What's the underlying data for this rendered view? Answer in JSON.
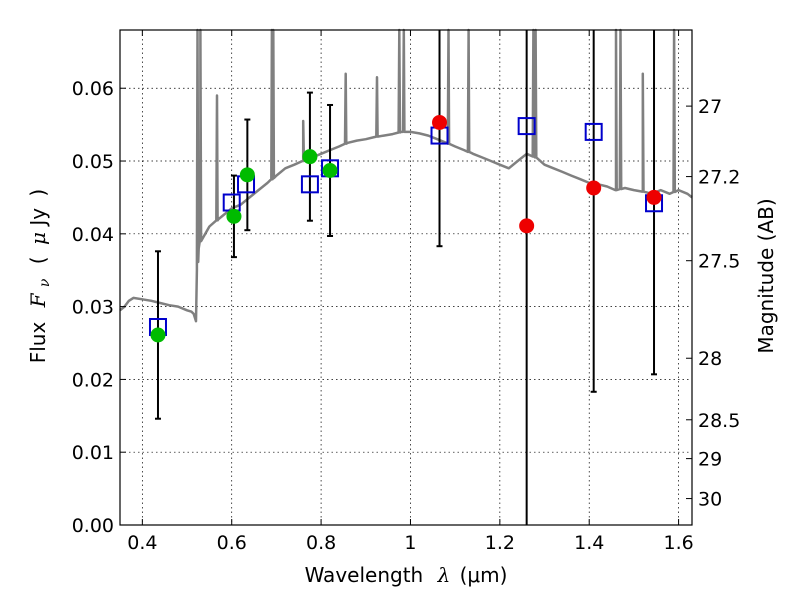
{
  "chart_data": {
    "type": "scatter",
    "x_axis": {
      "label_text": "Wavelength",
      "label_symbol": "λ",
      "label_unit": "(μm)",
      "range": [
        0.35,
        1.63
      ],
      "ticks": [
        0.4,
        0.6,
        0.8,
        1.0,
        1.2,
        1.4,
        1.6
      ],
      "tick_labels": [
        "0.4",
        "0.6",
        "0.8",
        "1",
        "1.2",
        "1.4",
        "1.6"
      ]
    },
    "y_axis": {
      "label_text": "Flux",
      "label_symbol": "F",
      "label_subscript": "ν",
      "label_open": "(",
      "label_mu": "μ",
      "label_unit": "Jy",
      "label_close": ")",
      "range": [
        0.0,
        0.068
      ],
      "ticks": [
        0.0,
        0.01,
        0.02,
        0.03,
        0.04,
        0.05,
        0.06
      ],
      "tick_labels": [
        "0.00",
        "0.01",
        "0.02",
        "0.03",
        "0.04",
        "0.05",
        "0.06"
      ]
    },
    "y2_axis": {
      "label": "Magnitude (AB)",
      "ticks": [
        27,
        27.2,
        27.5,
        28,
        28.5,
        29,
        30
      ],
      "tick_labels": [
        "27",
        "27.2",
        "27.5",
        "28",
        "28.5",
        "29",
        "30"
      ],
      "zero_point_magnitude": 23.9
    },
    "grid": true,
    "colors": {
      "model": "#808080",
      "model_points": "#0000cc",
      "ground_obs": "#00bb00",
      "nir_obs": "#ee0000",
      "errorbar": "#000000"
    },
    "model_spectrum": {
      "x": [
        0.35,
        0.36,
        0.37,
        0.38,
        0.4,
        0.42,
        0.44,
        0.46,
        0.48,
        0.5,
        0.51,
        0.515,
        0.52,
        0.522,
        0.526,
        0.53,
        0.55,
        0.57,
        0.58,
        0.59,
        0.6,
        0.62,
        0.64,
        0.66,
        0.68,
        0.7,
        0.72,
        0.74,
        0.76,
        0.78,
        0.8,
        0.82,
        0.84,
        0.86,
        0.88,
        0.9,
        0.92,
        0.94,
        0.96,
        0.98,
        1.0,
        1.02,
        1.04,
        1.06,
        1.08,
        1.1,
        1.12,
        1.14,
        1.16,
        1.18,
        1.2,
        1.22,
        1.24,
        1.26,
        1.28,
        1.3,
        1.32,
        1.34,
        1.36,
        1.38,
        1.4,
        1.42,
        1.44,
        1.46,
        1.48,
        1.5,
        1.52,
        1.54,
        1.56,
        1.58,
        1.6,
        1.62,
        1.63
      ],
      "y": [
        0.0295,
        0.03,
        0.0308,
        0.0312,
        0.031,
        0.0308,
        0.0305,
        0.0302,
        0.03,
        0.0295,
        0.0293,
        0.029,
        0.028,
        0.035,
        0.038,
        0.039,
        0.041,
        0.042,
        0.0425,
        0.043,
        0.0435,
        0.044,
        0.045,
        0.046,
        0.047,
        0.048,
        0.049,
        0.0495,
        0.05,
        0.0505,
        0.051,
        0.0515,
        0.052,
        0.0525,
        0.0528,
        0.053,
        0.0533,
        0.0535,
        0.0537,
        0.054,
        0.054,
        0.0538,
        0.0535,
        0.053,
        0.0525,
        0.052,
        0.0515,
        0.051,
        0.0505,
        0.05,
        0.0495,
        0.049,
        0.05,
        0.051,
        0.0505,
        0.0495,
        0.049,
        0.0485,
        0.048,
        0.0475,
        0.047,
        0.0468,
        0.0465,
        0.046,
        0.0463,
        0.046,
        0.0458,
        0.0455,
        0.046,
        0.0455,
        0.046,
        0.0455,
        0.045
      ],
      "emission_spikes": [
        {
          "x": 0.5235,
          "peak": 0.068
        },
        {
          "x": 0.53,
          "peak": 0.068
        },
        {
          "x": 0.567,
          "peak": 0.059
        },
        {
          "x": 0.69,
          "peak": 0.068
        },
        {
          "x": 0.693,
          "peak": 0.068
        },
        {
          "x": 0.76,
          "peak": 0.0555
        },
        {
          "x": 0.855,
          "peak": 0.062
        },
        {
          "x": 0.925,
          "peak": 0.0615
        },
        {
          "x": 0.975,
          "peak": 0.068
        },
        {
          "x": 0.985,
          "peak": 0.068
        },
        {
          "x": 1.085,
          "peak": 0.068
        },
        {
          "x": 1.13,
          "peak": 0.068
        },
        {
          "x": 1.275,
          "peak": 0.068
        },
        {
          "x": 1.28,
          "peak": 0.068
        },
        {
          "x": 1.46,
          "peak": 0.068
        },
        {
          "x": 1.47,
          "peak": 0.068
        },
        {
          "x": 1.52,
          "peak": 0.062
        },
        {
          "x": 1.59,
          "peak": 0.068
        }
      ]
    },
    "model_points": {
      "x": [
        0.435,
        0.6,
        0.632,
        0.775,
        0.82,
        1.065,
        1.26,
        1.41,
        1.545
      ],
      "y": [
        0.0272,
        0.0443,
        0.0468,
        0.0468,
        0.049,
        0.0535,
        0.0548,
        0.054,
        0.0442
      ]
    },
    "ground_observations": {
      "x": [
        0.435,
        0.605,
        0.635,
        0.775,
        0.82
      ],
      "y": [
        0.0261,
        0.0424,
        0.0481,
        0.0506,
        0.0487
      ],
      "err_low": [
        0.0115,
        0.0056,
        0.0076,
        0.0088,
        0.009
      ],
      "err_high": [
        0.0115,
        0.0056,
        0.0076,
        0.0088,
        0.009
      ]
    },
    "nir_observations": {
      "x": [
        1.065,
        1.26,
        1.41,
        1.545
      ],
      "y": [
        0.0553,
        0.0411,
        0.0463,
        0.045
      ],
      "err_low": [
        0.017,
        0.0411,
        0.028,
        0.0243
      ],
      "err_high": [
        0.017,
        0.03,
        0.03,
        0.03
      ]
    }
  }
}
